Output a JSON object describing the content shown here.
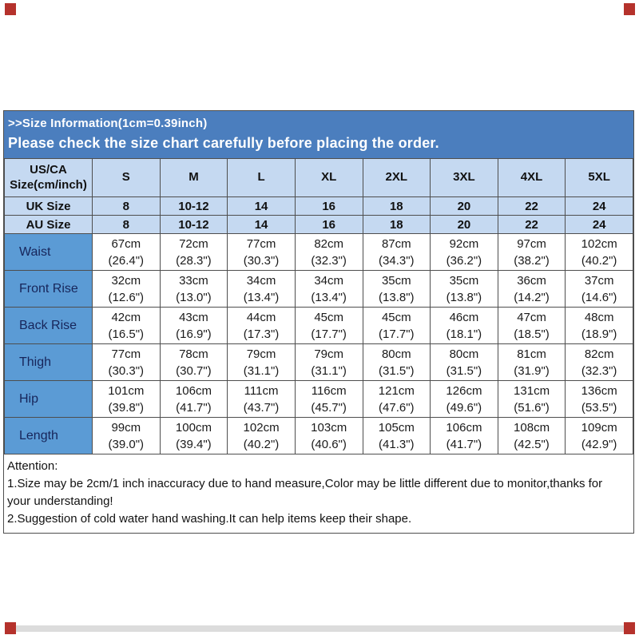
{
  "banner": {
    "line1": ">>Size Information(1cm=0.39inch)",
    "line2": "Please check the size chart carefully before placing the order."
  },
  "table": {
    "corner": {
      "line1": "US/CA",
      "line2": "Size(cm/inch)"
    },
    "columns": [
      "S",
      "M",
      "L",
      "XL",
      "2XL",
      "3XL",
      "4XL",
      "5XL"
    ],
    "size_rows": [
      {
        "label": "UK Size",
        "values": [
          "8",
          "10-12",
          "14",
          "16",
          "18",
          "20",
          "22",
          "24"
        ]
      },
      {
        "label": "AU Size",
        "values": [
          "8",
          "10-12",
          "14",
          "16",
          "18",
          "20",
          "22",
          "24"
        ]
      }
    ],
    "measurement_rows": [
      {
        "label": "Waist",
        "cm": [
          "67cm",
          "72cm",
          "77cm",
          "82cm",
          "87cm",
          "92cm",
          "97cm",
          "102cm"
        ],
        "inch": [
          "(26.4\")",
          "(28.3\")",
          "(30.3\")",
          "(32.3\")",
          "(34.3\")",
          "(36.2\")",
          "(38.2\")",
          "(40.2\")"
        ]
      },
      {
        "label": "Front Rise",
        "cm": [
          "32cm",
          "33cm",
          "34cm",
          "34cm",
          "35cm",
          "35cm",
          "36cm",
          "37cm"
        ],
        "inch": [
          "(12.6\")",
          "(13.0\")",
          "(13.4\")",
          "(13.4\")",
          "(13.8\")",
          "(13.8\")",
          "(14.2\")",
          "(14.6\")"
        ]
      },
      {
        "label": "Back Rise",
        "cm": [
          "42cm",
          "43cm",
          "44cm",
          "45cm",
          "45cm",
          "46cm",
          "47cm",
          "48cm"
        ],
        "inch": [
          "(16.5\")",
          "(16.9\")",
          "(17.3\")",
          "(17.7\")",
          "(17.7\")",
          "(18.1\")",
          "(18.5\")",
          "(18.9\")"
        ]
      },
      {
        "label": "Thigh",
        "cm": [
          "77cm",
          "78cm",
          "79cm",
          "79cm",
          "80cm",
          "80cm",
          "81cm",
          "82cm"
        ],
        "inch": [
          "(30.3\")",
          "(30.7\")",
          "(31.1\")",
          "(31.1\")",
          "(31.5\")",
          "(31.5\")",
          "(31.9\")",
          "(32.3\")"
        ]
      },
      {
        "label": "Hip",
        "cm": [
          "101cm",
          "106cm",
          "111cm",
          "116cm",
          "121cm",
          "126cm",
          "131cm",
          "136cm"
        ],
        "inch": [
          "(39.8\")",
          "(41.7\")",
          "(43.7\")",
          "(45.7\")",
          "(47.6\")",
          "(49.6\")",
          "(51.6\")",
          "(53.5\")"
        ]
      },
      {
        "label": "Length",
        "cm": [
          "99cm",
          "100cm",
          "102cm",
          "103cm",
          "105cm",
          "106cm",
          "108cm",
          "109cm"
        ],
        "inch": [
          "(39.0\")",
          "(39.4\")",
          "(40.2\")",
          "(40.6\")",
          "(41.3\")",
          "(41.7\")",
          "(42.5\")",
          "(42.9\")"
        ]
      }
    ]
  },
  "attention": {
    "lines": [
      "Attention:",
      "1.Size may be 2cm/1 inch inaccuracy due to hand measure,Color may be little different due to monitor,thanks for your understanding!",
      "2.Suggestion of cold water hand washing.It can help items keep their shape."
    ]
  },
  "colors": {
    "banner_blue": "#4B7EBE",
    "header_light_blue": "#C5D9F1",
    "label_blue": "#5B9BD5",
    "grid_border": "#4E4E4E",
    "corner_mark_red": "#B5322C"
  }
}
